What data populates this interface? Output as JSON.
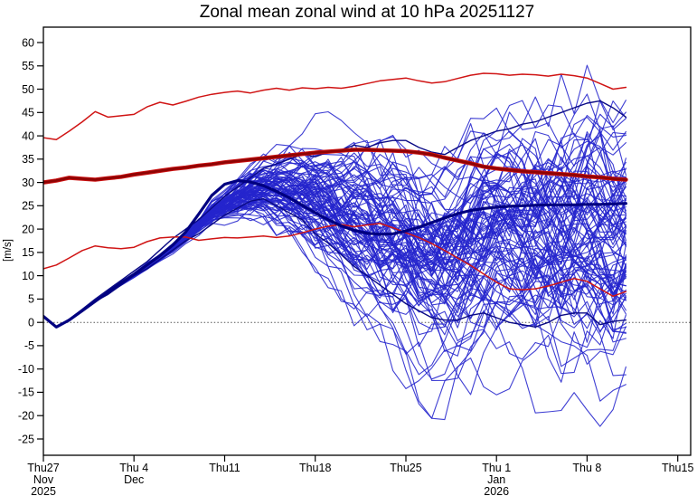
{
  "chart_data": {
    "type": "line",
    "title": "Zonal mean zonal wind at 10 hPa 20251127",
    "xlabel": "",
    "ylabel": "[m/s]",
    "ylim": [
      -28.5,
      63.3
    ],
    "x_range_days": [
      0,
      50
    ],
    "forecast_end_day": 45,
    "grid": false,
    "legend": false,
    "zero_line": 0,
    "x_ticks": [
      {
        "day": 0,
        "lines": [
          "Thu27",
          "Nov",
          "2025"
        ]
      },
      {
        "day": 7,
        "lines": [
          "Thu 4",
          "Dec"
        ]
      },
      {
        "day": 14,
        "lines": [
          "Thu11"
        ]
      },
      {
        "day": 21,
        "lines": [
          "Thu18"
        ]
      },
      {
        "day": 28,
        "lines": [
          "Thu25"
        ]
      },
      {
        "day": 35,
        "lines": [
          "Thu 1",
          "Jan",
          "2026"
        ]
      },
      {
        "day": 42,
        "lines": [
          "Thu 8"
        ]
      },
      {
        "day": 49,
        "lines": [
          "Thu15"
        ]
      }
    ],
    "y_ticks": [
      -25,
      -20,
      -15,
      -10,
      -5,
      0,
      5,
      10,
      15,
      20,
      25,
      30,
      35,
      40,
      45,
      50,
      55,
      60
    ],
    "colors": {
      "ensemble_member": "#2424cd",
      "ensemble_member_dark": "#0a0a85",
      "ensemble_mean": "#000080",
      "climatology_mean_core": "#8f0404",
      "climatology_mean_halo": "#cf1111",
      "climatology_bounds": "#d01414",
      "zero_line": "#555555",
      "frame": "#000000"
    },
    "series": [
      {
        "name": "climatology-upper",
        "color": "#d01414",
        "width": 1.5,
        "values": [
          39.6,
          39.2,
          41.0,
          43.0,
          45.2,
          44.0,
          44.3,
          44.6,
          46.2,
          47.2,
          46.6,
          47.4,
          48.3,
          48.9,
          49.3,
          49.6,
          49.2,
          49.8,
          50.2,
          49.8,
          50.3,
          50.1,
          50.4,
          50.2,
          50.6,
          51.2,
          51.8,
          52.1,
          52.4,
          51.8,
          51.3,
          51.6,
          52.3,
          53.0,
          53.4,
          53.3,
          53.0,
          53.2,
          53.1,
          52.8,
          53.2,
          52.9,
          52.4,
          51.2,
          50.0,
          50.4
        ]
      },
      {
        "name": "climatology-lower",
        "color": "#d01414",
        "width": 1.5,
        "values": [
          11.5,
          12.3,
          13.8,
          15.4,
          16.4,
          16.0,
          15.8,
          16.1,
          17.3,
          18.1,
          18.3,
          18.3,
          17.6,
          17.9,
          18.2,
          18.1,
          18.3,
          18.5,
          18.2,
          18.5,
          19.2,
          20.0,
          20.6,
          21.0,
          20.5,
          20.9,
          21.2,
          20.3,
          19.2,
          18.2,
          16.9,
          15.4,
          13.8,
          12.2,
          10.4,
          8.6,
          7.2,
          7.0,
          7.2,
          7.8,
          8.6,
          9.4,
          8.8,
          7.2,
          5.6,
          6.6
        ]
      },
      {
        "name": "climatology-mean",
        "color": "#8f0404",
        "width": 2.8,
        "halo": "#cf1111",
        "halo_width": 4.6,
        "values": [
          30.0,
          30.4,
          31.0,
          30.8,
          30.6,
          30.9,
          31.2,
          31.7,
          32.1,
          32.5,
          32.9,
          33.2,
          33.6,
          33.9,
          34.3,
          34.6,
          34.9,
          35.2,
          35.5,
          35.8,
          36.1,
          36.4,
          36.6,
          36.8,
          37.0,
          37.0,
          36.9,
          36.8,
          36.7,
          36.4,
          36.0,
          35.3,
          34.7,
          34.1,
          33.4,
          33.0,
          32.7,
          32.4,
          32.2,
          32.0,
          31.8,
          31.6,
          31.3,
          31.1,
          30.8,
          30.6
        ]
      },
      {
        "name": "ensemble-mean",
        "color": "#000080",
        "width": 3.2,
        "values": [
          1.3,
          -1.0,
          0.5,
          2.5,
          4.5,
          6.5,
          8.5,
          10.3,
          12.3,
          14.3,
          16.6,
          19.4,
          23.2,
          27.2,
          29.6,
          30.4,
          30.1,
          29.3,
          28.1,
          26.7,
          25.1,
          23.5,
          22.0,
          20.7,
          19.7,
          19.1,
          18.9,
          19.0,
          19.6,
          20.4,
          21.4,
          22.4,
          23.3,
          24.0,
          24.4,
          24.7,
          24.9,
          25.0,
          25.1,
          25.2,
          25.2,
          25.2,
          25.3,
          25.3,
          25.4,
          25.5
        ]
      }
    ],
    "highlight_members": [
      {
        "name": "member-dark-high",
        "color": "#0a0a85",
        "width": 1.4,
        "values": [
          1.3,
          -1.0,
          0.7,
          2.8,
          5.0,
          7.0,
          9.0,
          11.0,
          13.0,
          15.5,
          18.0,
          20.0,
          22.0,
          24.5,
          27.0,
          29.0,
          31.0,
          33.0,
          34.0,
          35.0,
          36.0,
          35.5,
          36.5,
          37.0,
          38.0,
          37.5,
          38.5,
          39.0,
          39.0,
          37.5,
          36.5,
          36.0,
          37.5,
          39.0,
          40.0,
          41.0,
          41.5,
          42.5,
          43.0,
          44.0,
          45.0,
          46.0,
          47.0,
          47.5,
          46.0,
          44.0
        ]
      },
      {
        "name": "member-dark-low",
        "color": "#0a0a85",
        "width": 1.4,
        "values": [
          1.3,
          -1.0,
          0.6,
          2.5,
          4.5,
          6.0,
          8.0,
          10.0,
          11.5,
          13.5,
          15.5,
          17.5,
          19.0,
          21.0,
          23.0,
          24.5,
          26.0,
          26.5,
          25.0,
          23.5,
          22.0,
          19.0,
          17.0,
          14.5,
          12.0,
          10.0,
          8.0,
          6.0,
          4.0,
          2.5,
          1.0,
          0.5,
          0.5,
          1.5,
          2.0,
          1.0,
          0.0,
          -0.5,
          -1.0,
          0.0,
          1.5,
          2.0,
          2.0,
          -0.5,
          0.2,
          0.5
        ]
      }
    ],
    "ensemble": {
      "count": 95,
      "seed": 11,
      "color": "#2424cd",
      "width": 1.1,
      "opacity": 0.88,
      "days": 46,
      "common_start": [
        1.3,
        -1.0,
        0.5,
        2.5
      ],
      "envelope_min": [
        1.0,
        -1.5,
        0.0,
        2.0,
        3.8,
        5.4,
        7.0,
        8.5,
        10.0,
        11.8,
        13.4,
        15.0,
        16.5,
        18.0,
        18.5,
        17.5,
        16.5,
        15.5,
        13.5,
        11.5,
        9.5,
        7.0,
        4.0,
        1.0,
        -2.5,
        -6.0,
        -10.0,
        -14.0,
        -17.0,
        -20.0,
        -22.0,
        -23.0,
        -22.0,
        -20.5,
        -18.5,
        -17.0,
        -18.0,
        -19.5,
        -21.0,
        -22.0,
        -23.0,
        -24.0,
        -23.0,
        -24.0,
        -25.5,
        -20.0
      ],
      "envelope_max": [
        1.8,
        -0.4,
        1.2,
        3.2,
        5.2,
        7.4,
        9.6,
        11.8,
        14.2,
        16.2,
        18.6,
        21.5,
        25.0,
        29.0,
        32.0,
        35.5,
        38.5,
        41.0,
        42.8,
        44.0,
        45.0,
        45.5,
        46.0,
        46.0,
        46.5,
        47.0,
        47.5,
        48.0,
        48.0,
        48.5,
        49.0,
        50.0,
        51.0,
        53.0,
        55.0,
        56.5,
        57.5,
        58.0,
        58.5,
        59.0,
        60.0,
        61.0,
        62.0,
        61.0,
        59.0,
        57.0
      ]
    }
  }
}
